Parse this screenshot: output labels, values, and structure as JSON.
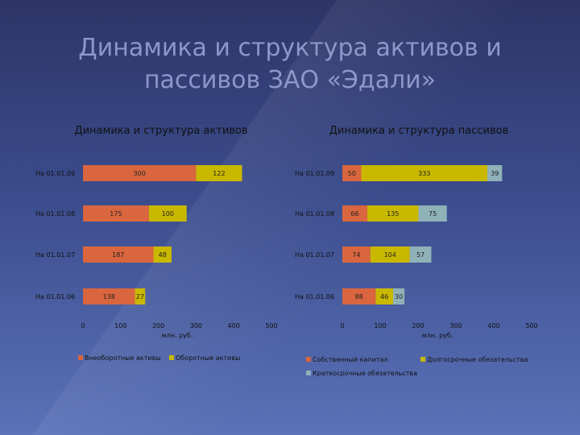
{
  "slide": {
    "title_line1": "Динамика и структура активов и",
    "title_line2": "пассивов ЗАО «Эдали»"
  },
  "chart_data": [
    {
      "type": "bar",
      "orientation": "horizontal",
      "stacked": true,
      "title": "Динамика и структура активов",
      "xlabel": "млн. руб.",
      "categories": [
        "На 01.01.09",
        "На 01.01.08",
        "На 01.01.07",
        "На 01.01.06"
      ],
      "xlim": [
        0,
        500
      ],
      "xticks": [
        0,
        100,
        200,
        300,
        400,
        500
      ],
      "series": [
        {
          "name": "Внеоборотные активы",
          "color": "#d9663e",
          "values": [
            300,
            175,
            187,
            138
          ]
        },
        {
          "name": "Оборотные активы",
          "color": "#c9b800",
          "values": [
            122,
            100,
            48,
            27
          ]
        }
      ],
      "legend_position": "bottom"
    },
    {
      "type": "bar",
      "orientation": "horizontal",
      "stacked": true,
      "title": "Динамика и структура пассивов",
      "xlabel": "млн. руб.",
      "categories": [
        "На 01.01.09",
        "На 01.01.08",
        "На 01.01.07",
        "На 01.01.06"
      ],
      "xlim": [
        0,
        500
      ],
      "xticks": [
        0,
        100,
        200,
        300,
        400,
        500
      ],
      "series": [
        {
          "name": "Собственный капитал",
          "color": "#d9663e",
          "values": [
            50,
            66,
            74,
            88
          ]
        },
        {
          "name": "Долгосрочные обязательства",
          "color": "#c9b800",
          "values": [
            333,
            135,
            104,
            46
          ]
        },
        {
          "name": "Краткосрочные обязательства",
          "color": "#8fb1b8",
          "values": [
            39,
            75,
            57,
            30
          ]
        }
      ],
      "legend_position": "bottom"
    }
  ]
}
